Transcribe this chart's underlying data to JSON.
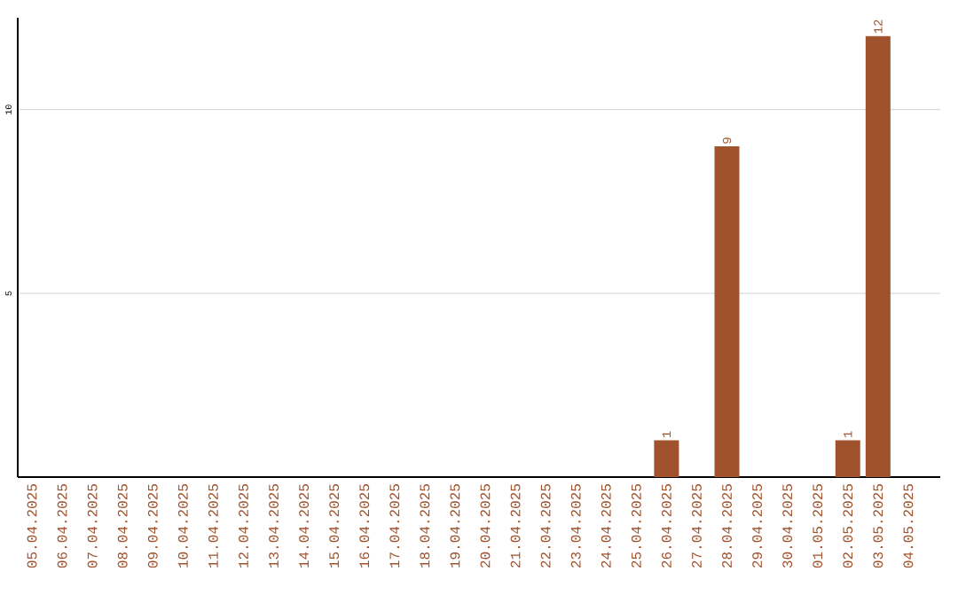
{
  "chart_data": {
    "type": "bar",
    "categories": [
      "05.04.2025",
      "06.04.2025",
      "07.04.2025",
      "08.04.2025",
      "09.04.2025",
      "10.04.2025",
      "11.04.2025",
      "12.04.2025",
      "13.04.2025",
      "14.04.2025",
      "15.04.2025",
      "16.04.2025",
      "17.04.2025",
      "18.04.2025",
      "19.04.2025",
      "20.04.2025",
      "21.04.2025",
      "22.04.2025",
      "23.04.2025",
      "24.04.2025",
      "25.04.2025",
      "26.04.2025",
      "27.04.2025",
      "28.04.2025",
      "29.04.2025",
      "30.04.2025",
      "01.05.2025",
      "02.05.2025",
      "03.05.2025",
      "04.05.2025"
    ],
    "values": [
      0,
      0,
      0,
      0,
      0,
      0,
      0,
      0,
      0,
      0,
      0,
      0,
      0,
      0,
      0,
      0,
      0,
      0,
      0,
      0,
      0,
      1,
      0,
      9,
      0,
      0,
      0,
      1,
      12,
      0
    ],
    "value_labels": [
      null,
      null,
      null,
      null,
      null,
      null,
      null,
      null,
      null,
      null,
      null,
      null,
      null,
      null,
      null,
      null,
      null,
      null,
      null,
      null,
      null,
      "1",
      null,
      "9",
      null,
      null,
      null,
      "1",
      "12",
      null
    ],
    "color": "#a0522d",
    "ylim": [
      0,
      12.5
    ],
    "yticks": [
      5,
      10
    ],
    "grid": "y"
  }
}
